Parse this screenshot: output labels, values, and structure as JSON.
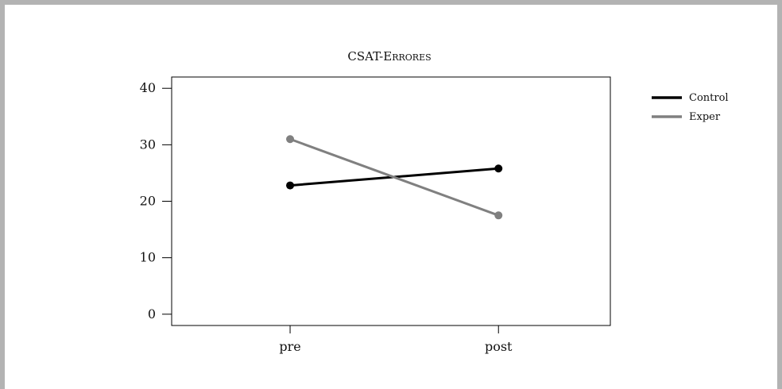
{
  "chart_data": {
    "type": "line",
    "title": "CSAT-Errores",
    "xlabel": "",
    "ylabel": "",
    "categories": [
      "pre",
      "post"
    ],
    "ylim": [
      -2,
      42
    ],
    "yticks": [
      0,
      10,
      20,
      30,
      40
    ],
    "grid": false,
    "legend_position": "right",
    "series": [
      {
        "name": "Control",
        "values": [
          22.8,
          25.8
        ],
        "color": "#000000"
      },
      {
        "name": "Exper",
        "values": [
          31.0,
          17.5
        ],
        "color": "#808080"
      }
    ]
  }
}
